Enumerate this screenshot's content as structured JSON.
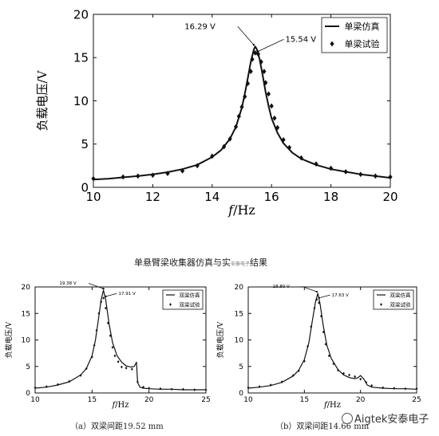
{
  "chart_data": [
    {
      "type": "line",
      "xlabel_italic": "f",
      "xlabel_rest": "/Hz",
      "ylabel": "负载电压/V",
      "xlim": [
        10,
        20
      ],
      "ylim": [
        0,
        20
      ],
      "xticks": [
        10,
        12,
        14,
        16,
        18,
        20
      ],
      "yticks": [
        0,
        5,
        10,
        15,
        20
      ],
      "legend": {
        "placement": "top-right",
        "entries": [
          "单梁仿真",
          "单梁试验"
        ]
      },
      "annotations": [
        {
          "text": "16.29 V",
          "x": 15.4,
          "y": 16.29
        },
        {
          "text": "15.54 V",
          "x": 15.55,
          "y": 15.54
        }
      ],
      "series": [
        {
          "name": "单梁仿真",
          "style": "line",
          "x": [
            10,
            10.5,
            11,
            11.5,
            12,
            12.5,
            13,
            13.5,
            14,
            14.3,
            14.6,
            14.8,
            15,
            15.1,
            15.2,
            15.3,
            15.4,
            15.45,
            15.5,
            15.6,
            15.7,
            15.8,
            15.9,
            16,
            16.2,
            16.4,
            16.7,
            17,
            17.5,
            18,
            18.5,
            19,
            19.5,
            20
          ],
          "y": [
            0.9,
            1.0,
            1.15,
            1.3,
            1.5,
            1.75,
            2.1,
            2.6,
            3.5,
            4.3,
            5.6,
            7.0,
            9.2,
            10.8,
            12.6,
            14.5,
            15.9,
            16.29,
            16.0,
            14.8,
            13.0,
            11.0,
            9.4,
            8.0,
            6.3,
            5.1,
            4.0,
            3.3,
            2.6,
            2.1,
            1.8,
            1.5,
            1.3,
            1.1
          ]
        },
        {
          "name": "单梁试验",
          "style": "markers",
          "x": [
            10,
            11,
            11.5,
            12,
            12.5,
            13,
            13.5,
            14,
            14.4,
            14.6,
            14.8,
            14.9,
            15,
            15.1,
            15.2,
            15.3,
            15.35,
            15.45,
            15.55,
            15.65,
            15.75,
            15.8,
            15.9,
            16,
            16.1,
            16.2,
            16.4,
            16.6,
            17,
            17.5,
            18,
            18.5,
            19,
            19.5,
            20
          ],
          "y": [
            1.0,
            1.2,
            1.3,
            1.4,
            1.6,
            1.9,
            2.5,
            3.6,
            4.7,
            5.6,
            7.0,
            8.2,
            9.3,
            10.5,
            12.0,
            13.4,
            14.8,
            15.54,
            15.4,
            14.5,
            13.4,
            12.1,
            10.8,
            9.4,
            8.0,
            6.9,
            5.5,
            4.6,
            3.4,
            2.7,
            2.2,
            1.8,
            1.5,
            1.3,
            1.2
          ]
        }
      ]
    },
    {
      "type": "line",
      "xlabel_italic": "f",
      "xlabel_rest": "/Hz",
      "ylabel": "负载电压/V",
      "xlim": [
        10,
        25
      ],
      "ylim": [
        0,
        20
      ],
      "xticks": [
        10,
        15,
        20,
        25
      ],
      "yticks": [
        0,
        5,
        10,
        15,
        20
      ],
      "legend": {
        "placement": "top-right",
        "entries": [
          "双梁仿真",
          "双梁试验"
        ]
      },
      "annotations": [
        {
          "text": "19.38 V",
          "x": 16.0,
          "y": 19.38
        },
        {
          "text": "17.91 V",
          "x": 16.2,
          "y": 17.91
        }
      ],
      "series": [
        {
          "name": "双梁仿真",
          "style": "line",
          "x": [
            10,
            11,
            12,
            13,
            14,
            14.5,
            15,
            15.3,
            15.6,
            15.8,
            16,
            16.2,
            16.5,
            16.8,
            17.2,
            17.6,
            18,
            18.4,
            18.7,
            18.9,
            19.0,
            19.2,
            19.5,
            20,
            21,
            22,
            23,
            24,
            25
          ],
          "y": [
            0.9,
            1.1,
            1.5,
            2.1,
            3.4,
            4.6,
            7.0,
            10.0,
            14.5,
            17.6,
            19.38,
            17.5,
            13.0,
            9.5,
            7.0,
            5.8,
            5.1,
            4.9,
            5.0,
            5.8,
            2.0,
            1.1,
            0.9,
            0.8,
            0.7,
            0.7,
            0.6,
            0.6,
            0.6
          ]
        },
        {
          "name": "双梁试验",
          "style": "markers",
          "x": [
            10,
            11,
            12,
            13,
            14,
            14.5,
            15,
            15.2,
            15.4,
            15.6,
            15.8,
            16,
            16.2,
            16.4,
            16.6,
            16.8,
            17,
            17.3,
            17.6,
            18,
            18.5,
            19,
            19.5,
            20,
            21,
            22,
            23,
            24,
            25
          ],
          "y": [
            1.0,
            1.2,
            1.6,
            2.2,
            3.3,
            4.6,
            6.8,
            9.0,
            11.8,
            15.0,
            17.2,
            17.9,
            16.0,
            13.2,
            10.8,
            8.6,
            7.0,
            5.9,
            4.9,
            4.7,
            4.5,
            2.1,
            1.1,
            0.9,
            0.8,
            0.7,
            0.7,
            0.6,
            0.6
          ]
        }
      ]
    },
    {
      "type": "line",
      "xlabel_italic": "f",
      "xlabel_rest": "/Hz",
      "ylabel": "负载电压/V",
      "xlim": [
        10,
        25
      ],
      "ylim": [
        0,
        20
      ],
      "xticks": [
        10,
        15,
        20,
        25
      ],
      "yticks": [
        0,
        5,
        10,
        15,
        20
      ],
      "legend": {
        "placement": "top-right",
        "entries": [
          "双梁仿真",
          "双梁试验"
        ]
      },
      "annotations": [
        {
          "text": "18.80 V",
          "x": 16.1,
          "y": 18.8
        },
        {
          "text": "17.63 V",
          "x": 16.3,
          "y": 17.63
        }
      ],
      "series": [
        {
          "name": "双梁仿真",
          "style": "line",
          "x": [
            10,
            11,
            12,
            13,
            14,
            14.5,
            15,
            15.4,
            15.7,
            16.0,
            16.2,
            16.4,
            16.7,
            17.0,
            17.4,
            18,
            18.5,
            19,
            19.5,
            19.8,
            20,
            20.3,
            20.6,
            21,
            22,
            23,
            24,
            25
          ],
          "y": [
            0.9,
            1.1,
            1.4,
            2.0,
            3.2,
            4.3,
            6.3,
            9.5,
            13.5,
            17.3,
            18.8,
            16.8,
            12.5,
            9.0,
            6.5,
            4.4,
            3.4,
            2.9,
            2.7,
            2.9,
            3.3,
            2.6,
            1.5,
            1.1,
            0.9,
            0.8,
            0.8,
            0.7
          ]
        },
        {
          "name": "双梁试验",
          "style": "markers",
          "x": [
            10,
            11,
            12,
            13,
            14,
            14.5,
            15,
            15.3,
            15.6,
            15.9,
            16.1,
            16.3,
            16.5,
            16.7,
            16.9,
            17.2,
            17.6,
            18,
            18.5,
            19,
            19.5,
            20,
            20.5,
            21,
            22,
            23,
            24,
            25
          ],
          "y": [
            1.0,
            1.2,
            1.5,
            2.1,
            3.3,
            4.2,
            6.0,
            8.8,
            12.5,
            16.0,
            17.63,
            17.0,
            14.5,
            11.5,
            9.2,
            7.0,
            5.5,
            4.3,
            3.7,
            3.4,
            3.1,
            2.6,
            2.0,
            1.4,
            1.0,
            0.9,
            0.8,
            0.8
          ]
        }
      ]
    }
  ],
  "texts": {
    "middle_title": "单悬臂梁收集器仿真与实",
    "middle_title_tail": "结果",
    "middle_watermark": "安泰电子",
    "caption_a": "（a）双梁间距19.52 mm",
    "caption_b": "（b）双梁间距14.66 mm",
    "watermark": "Aigtek安泰电子"
  },
  "colors": {
    "line": "#111111",
    "marker": "#111111",
    "axis": "#111111"
  }
}
